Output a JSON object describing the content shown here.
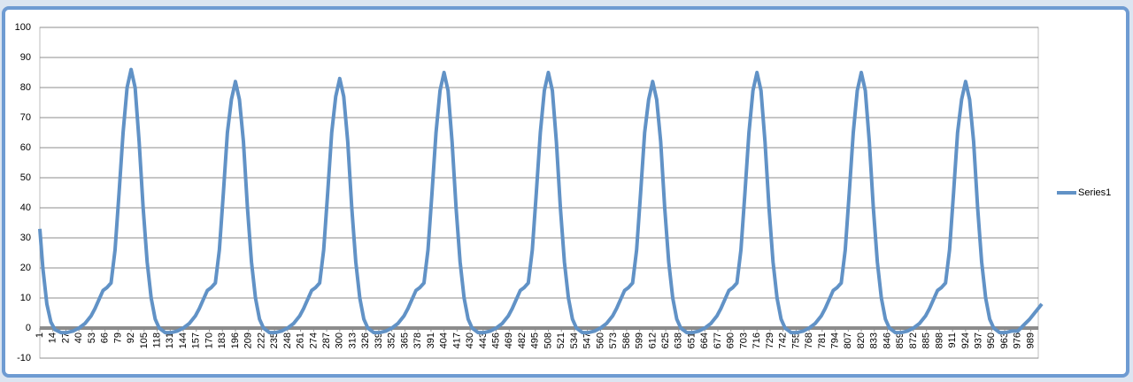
{
  "chart_data": {
    "type": "line",
    "x": [
      1,
      4,
      8,
      12,
      16,
      22,
      28,
      34,
      40,
      46,
      52,
      56,
      60,
      64,
      68,
      72,
      76,
      80,
      84,
      88,
      92,
      96,
      100,
      104,
      108,
      112,
      116,
      120,
      126,
      132,
      138,
      144,
      150,
      156,
      160,
      164,
      168,
      172,
      176,
      180,
      184,
      188,
      192,
      196,
      200,
      204,
      208,
      212,
      216,
      220,
      224,
      230,
      236,
      242,
      248,
      254,
      260,
      264,
      268,
      272,
      276,
      280,
      284,
      288,
      292,
      296,
      300,
      304,
      308,
      312,
      316,
      320,
      324,
      328,
      334,
      340,
      346,
      352,
      358,
      364,
      368,
      372,
      376,
      380,
      384,
      388,
      392,
      396,
      400,
      404,
      408,
      412,
      416,
      420,
      424,
      428,
      432,
      438,
      444,
      450,
      456,
      462,
      468,
      472,
      476,
      480,
      484,
      488,
      492,
      496,
      500,
      504,
      508,
      512,
      516,
      520,
      524,
      528,
      532,
      536,
      542,
      548,
      554,
      560,
      566,
      572,
      576,
      580,
      584,
      588,
      592,
      596,
      600,
      604,
      608,
      612,
      616,
      620,
      624,
      628,
      632,
      636,
      640,
      646,
      652,
      658,
      664,
      670,
      676,
      680,
      684,
      688,
      692,
      696,
      700,
      704,
      708,
      712,
      716,
      720,
      724,
      728,
      732,
      736,
      740,
      744,
      750,
      756,
      762,
      768,
      774,
      780,
      784,
      788,
      792,
      796,
      800,
      804,
      808,
      812,
      816,
      820,
      824,
      828,
      832,
      836,
      840,
      844,
      848,
      854,
      860,
      866,
      872,
      878,
      884,
      888,
      892,
      896,
      900,
      904,
      908,
      912,
      916,
      920,
      924,
      928,
      932,
      936,
      940,
      944,
      948,
      952,
      958,
      964,
      970,
      976,
      982,
      988,
      994,
      1000
    ],
    "series": [
      {
        "name": "Series1",
        "color": "#6192c6",
        "values": [
          33,
          20,
          8,
          2,
          -0.5,
          -1.5,
          -1.5,
          -1,
          0,
          1.5,
          4,
          6.5,
          9.5,
          12.5,
          13.5,
          15,
          26,
          45,
          65,
          80,
          86,
          80,
          62,
          40,
          22,
          10,
          3,
          0,
          -1.5,
          -1.5,
          -1,
          0,
          1.5,
          4,
          6.5,
          9.5,
          12.5,
          13.5,
          15,
          26,
          45,
          65,
          76,
          82,
          76,
          62,
          40,
          22,
          10,
          3,
          0,
          -1.5,
          -1.5,
          -1,
          0,
          1.5,
          4,
          6.5,
          9.5,
          12.5,
          13.5,
          15,
          26,
          45,
          65,
          77,
          83,
          77,
          62,
          40,
          22,
          10,
          3,
          0,
          -1.5,
          -1.5,
          -1,
          0,
          1.5,
          4,
          6.5,
          9.5,
          12.5,
          13.5,
          15,
          26,
          45,
          65,
          79,
          85,
          79,
          62,
          40,
          22,
          10,
          3,
          0,
          -1.5,
          -1.5,
          -1,
          0,
          1.5,
          4,
          6.5,
          9.5,
          12.5,
          13.5,
          15,
          26,
          45,
          65,
          79,
          85,
          79,
          62,
          40,
          22,
          10,
          3,
          0,
          -1.5,
          -1.5,
          -1,
          0,
          1.5,
          4,
          6.5,
          9.5,
          12.5,
          13.5,
          15,
          26,
          45,
          65,
          76,
          82,
          76,
          62,
          40,
          22,
          10,
          3,
          0,
          -1.5,
          -1.5,
          -1,
          0,
          1.5,
          4,
          6.5,
          9.5,
          12.5,
          13.5,
          15,
          26,
          45,
          65,
          79,
          85,
          79,
          62,
          40,
          22,
          10,
          3,
          0,
          -1.5,
          -1.5,
          -1,
          0,
          1.5,
          4,
          6.5,
          9.5,
          12.5,
          13.5,
          15,
          26,
          45,
          65,
          79,
          85,
          79,
          62,
          40,
          22,
          10,
          3,
          0,
          -1.5,
          -1.5,
          -1,
          0,
          1.5,
          4,
          6.5,
          9.5,
          12.5,
          13.5,
          15,
          26,
          45,
          65,
          76,
          82,
          76,
          62,
          40,
          22,
          10,
          3,
          0,
          -1.5,
          -1.5,
          -1,
          -1,
          1,
          3,
          5.5,
          8
        ]
      }
    ],
    "xlim": [
      1,
      1000
    ],
    "xticks": [
      1,
      14,
      27,
      40,
      53,
      66,
      79,
      92,
      105,
      118,
      131,
      144,
      157,
      170,
      183,
      196,
      209,
      222,
      235,
      248,
      261,
      274,
      287,
      300,
      313,
      326,
      339,
      352,
      365,
      378,
      391,
      404,
      417,
      430,
      443,
      456,
      469,
      482,
      495,
      508,
      521,
      534,
      547,
      560,
      573,
      586,
      599,
      612,
      625,
      638,
      651,
      664,
      677,
      690,
      703,
      716,
      729,
      742,
      755,
      768,
      781,
      794,
      807,
      820,
      833,
      846,
      859,
      872,
      885,
      898,
      911,
      924,
      937,
      950,
      963,
      976,
      989
    ],
    "ylim": [
      -10,
      100
    ],
    "yticks": [
      -10,
      0,
      10,
      20,
      30,
      40,
      50,
      60,
      70,
      80,
      90,
      100
    ],
    "grid": true,
    "legend": "right"
  }
}
